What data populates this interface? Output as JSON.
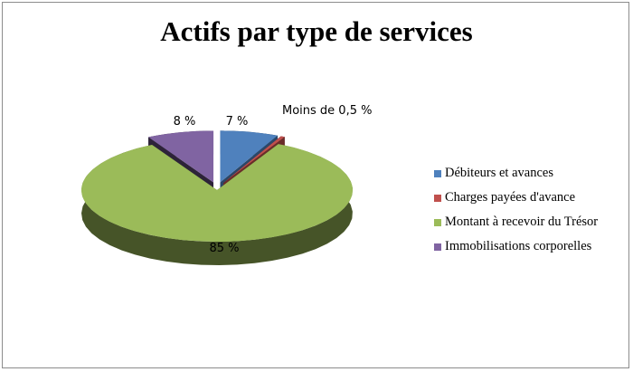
{
  "chart_data": {
    "type": "pie",
    "title": "Actifs par type de services",
    "categories": [
      "Débiteurs et avances",
      "Charges payées d'avance",
      "Montant à recevoir du Trésor",
      "Immobilisations corporelles"
    ],
    "values": [
      7,
      0.5,
      85,
      8
    ],
    "data_labels": [
      "7 %",
      "Moins de 0,5 %",
      "85 %",
      "8 %"
    ],
    "colors": [
      "#4f81bd",
      "#c0504d",
      "#9bbb59",
      "#8064a2"
    ],
    "legend_position": "right",
    "style": "3d-exploded"
  }
}
